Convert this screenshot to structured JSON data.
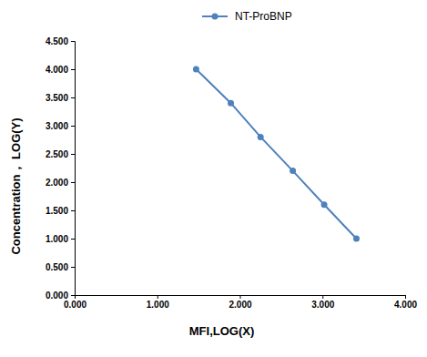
{
  "chart_data": {
    "type": "line",
    "x_label": "MFI,LOG(X)",
    "y_label": "Concentration， LOG(Y)",
    "x": [
      1.47,
      1.89,
      2.25,
      2.64,
      3.02,
      3.41
    ],
    "series": [
      {
        "name": "NT-ProBNP",
        "color": "#4f81bd",
        "marker": "circle",
        "line_style": "solid",
        "values": [
          4.0,
          3.4,
          2.8,
          2.2,
          1.6,
          1.0
        ]
      }
    ],
    "xlim": [
      0,
      4
    ],
    "xticks": [
      {
        "value": 0,
        "label": "0.000"
      },
      {
        "value": 1,
        "label": "1.000"
      },
      {
        "value": 2,
        "label": "2.000"
      },
      {
        "value": 3,
        "label": "3.000"
      },
      {
        "value": 4,
        "label": "4.000"
      }
    ],
    "ylim": [
      0,
      4.5
    ],
    "yticks": [
      {
        "value": 0,
        "label": "0.000"
      },
      {
        "value": 0.5,
        "label": "0.500"
      },
      {
        "value": 1,
        "label": "1.000"
      },
      {
        "value": 1.5,
        "label": "1.500"
      },
      {
        "value": 2,
        "label": "2.000"
      },
      {
        "value": 2.5,
        "label": "2.500"
      },
      {
        "value": 3,
        "label": "3.000"
      },
      {
        "value": 3.5,
        "label": "3.500"
      },
      {
        "value": 4,
        "label": "4.000"
      },
      {
        "value": 4.5,
        "label": "4.500"
      }
    ],
    "grid": false,
    "legend": "top"
  }
}
